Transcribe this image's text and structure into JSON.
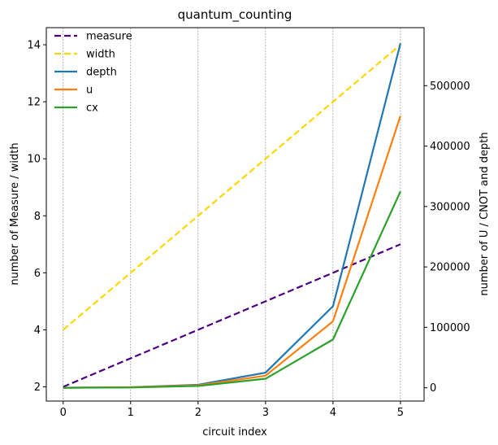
{
  "chart_data": {
    "type": "line",
    "title": "quantum_counting",
    "xlabel": "circuit index",
    "ylabel_left": "number of Measure / width",
    "ylabel_right": "number of U / CNOT and depth",
    "x": [
      0,
      1,
      2,
      3,
      4,
      5
    ],
    "x_ticks": [
      "0",
      "1",
      "2",
      "3",
      "4",
      "5"
    ],
    "xlim": [
      -0.25,
      5.35
    ],
    "ylim_left": [
      1.5,
      14.6
    ],
    "ylim_right": [
      -22000,
      596000
    ],
    "left_ticks": [
      2,
      4,
      6,
      8,
      10,
      12,
      14
    ],
    "left_tick_labels": [
      "2",
      "4",
      "6",
      "8",
      "10",
      "12",
      "14"
    ],
    "right_ticks": [
      0,
      100000,
      200000,
      300000,
      400000,
      500000
    ],
    "right_tick_labels": [
      "0",
      "100000",
      "200000",
      "300000",
      "400000",
      "500000"
    ],
    "vertical_grid": true,
    "legend_position": "top-left",
    "series": [
      {
        "name": "measure",
        "axis": "left",
        "style": "dashed",
        "color": "#4b0082",
        "values": [
          2,
          3,
          4,
          5,
          6,
          7
        ]
      },
      {
        "name": "width",
        "axis": "left",
        "style": "dashed",
        "color": "#ffd700",
        "values": [
          4,
          6,
          8,
          10,
          12,
          14
        ]
      },
      {
        "name": "depth",
        "axis": "right",
        "style": "solid",
        "color": "#1f77b4",
        "values": [
          0,
          1000,
          5000,
          25000,
          135000,
          570000
        ]
      },
      {
        "name": "u",
        "axis": "right",
        "style": "solid",
        "color": "#ff7f0e",
        "values": [
          0,
          1000,
          4000,
          20000,
          110000,
          450000
        ]
      },
      {
        "name": "cx",
        "axis": "right",
        "style": "solid",
        "color": "#2ca02c",
        "values": [
          0,
          500,
          3000,
          15000,
          80000,
          325000
        ]
      }
    ]
  }
}
